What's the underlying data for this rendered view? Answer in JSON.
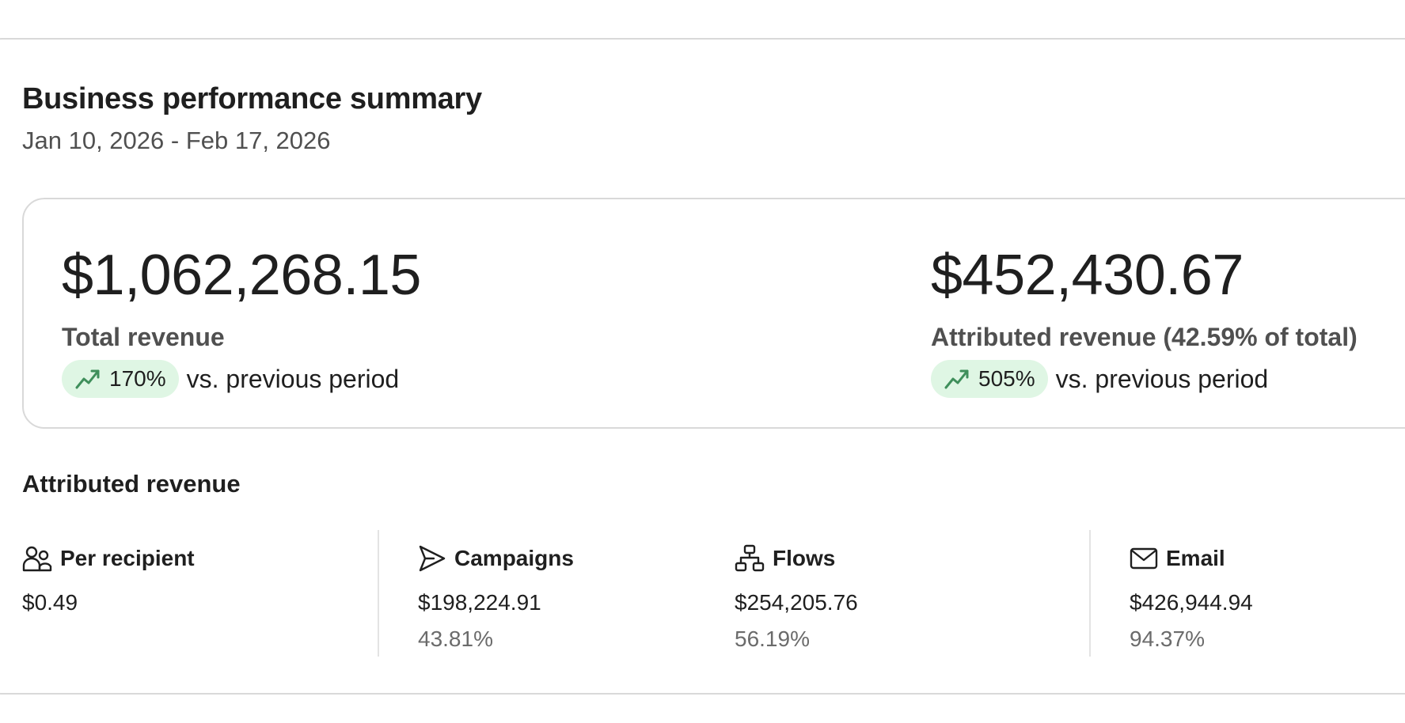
{
  "header": {
    "title": "Business performance summary",
    "date_range": "Jan 10, 2026 - Feb 17, 2026"
  },
  "kpis": [
    {
      "value": "$1,062,268.15",
      "label": "Total revenue",
      "change": "170%",
      "change_suffix": "vs. previous period"
    },
    {
      "value": "$452,430.67",
      "label": "Attributed revenue (42.59% of total)",
      "change": "505%",
      "change_suffix": "vs. previous period"
    }
  ],
  "attributed": {
    "title": "Attributed revenue",
    "metrics": [
      {
        "icon": "people-icon",
        "label": "Per recipient",
        "value": "$0.49",
        "percent": ""
      },
      {
        "icon": "send-icon",
        "label": "Campaigns",
        "value": "$198,224.91",
        "percent": "43.81%"
      },
      {
        "icon": "flow-icon",
        "label": "Flows",
        "value": "$254,205.76",
        "percent": "56.19%"
      },
      {
        "icon": "mail-icon",
        "label": "Email",
        "value": "$426,944.94",
        "percent": "94.37%"
      }
    ]
  },
  "colors": {
    "trend_pill_bg": "#dff6e4",
    "trend_arrow": "#3f8f5b",
    "border": "#d9d9d9"
  }
}
